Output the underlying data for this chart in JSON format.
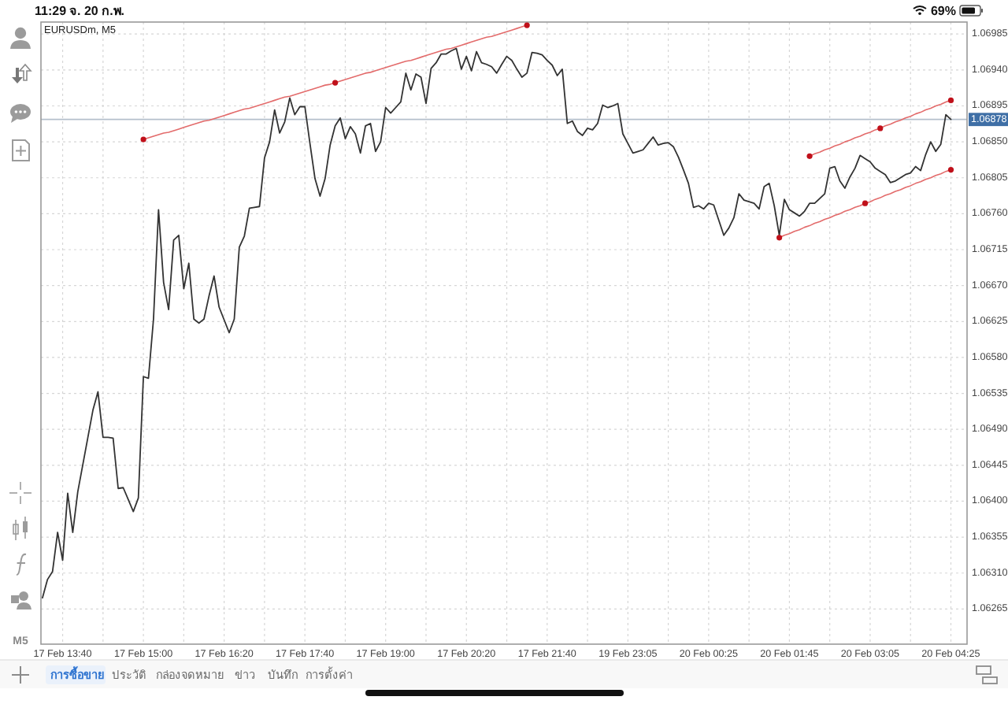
{
  "chart_data": {
    "type": "line",
    "title": "EURUSDm, M5",
    "categories": [
      null,
      null,
      null,
      null,
      "17 Feb 13:40",
      null,
      null,
      null,
      null,
      null,
      null,
      null,
      null,
      null,
      null,
      null,
      null,
      null,
      null,
      null,
      "17 Feb 15:00",
      null,
      null,
      null,
      null,
      null,
      null,
      null,
      null,
      null,
      null,
      null,
      null,
      null,
      null,
      null,
      "17 Feb 16:20",
      null,
      null,
      null,
      null,
      null,
      null,
      null,
      null,
      null,
      null,
      null,
      null,
      null,
      null,
      null,
      "17 Feb 17:40",
      null,
      null,
      null,
      null,
      null,
      null,
      null,
      null,
      null,
      null,
      null,
      null,
      null,
      null,
      null,
      "17 Feb 19:00",
      null,
      null,
      null,
      null,
      null,
      null,
      null,
      null,
      null,
      null,
      null,
      null,
      null,
      null,
      null,
      "17 Feb 20:20",
      null,
      null,
      null,
      null,
      null,
      null,
      null,
      null,
      null,
      null,
      null,
      null,
      null,
      null,
      null,
      "17 Feb 21:40",
      null,
      null,
      null,
      null,
      null,
      null,
      null,
      null,
      null,
      null,
      null,
      null,
      null,
      null,
      null,
      "19 Feb 23:05",
      null,
      null,
      null,
      null,
      null,
      null,
      null,
      null,
      null,
      null,
      null,
      null,
      null,
      null,
      null,
      "20 Feb 00:25",
      null,
      null,
      null,
      null,
      null,
      null,
      null,
      null,
      null,
      null,
      null,
      null,
      null,
      null,
      null,
      "20 Feb 01:45",
      null,
      null,
      null,
      null,
      null,
      null,
      null,
      null,
      null,
      null,
      null,
      null,
      null,
      null,
      null,
      "20 Feb 03:05",
      null,
      null,
      null,
      null,
      null,
      null,
      null,
      null,
      null,
      null,
      null,
      null,
      null,
      null,
      null,
      "20 Feb 04:25"
    ],
    "series": [
      {
        "color": "#333333",
        "values": [
          1.06279,
          1.06302,
          1.06312,
          1.06361,
          1.06326,
          1.0641,
          1.06361,
          1.06412,
          1.06446,
          1.0648,
          1.06514,
          1.06537,
          1.0648,
          1.0648,
          1.06479,
          1.06416,
          1.06417,
          1.06402,
          1.06387,
          1.06404,
          1.06556,
          1.06554,
          1.06628,
          1.06765,
          1.06674,
          1.0664,
          1.06727,
          1.06733,
          1.06666,
          1.06698,
          1.06628,
          1.06623,
          1.06628,
          1.06657,
          1.06682,
          1.06643,
          1.06627,
          1.06611,
          1.06628,
          1.06718,
          1.06732,
          1.06767,
          1.06768,
          1.06769,
          1.0683,
          1.0685,
          1.0689,
          1.06861,
          1.06875,
          1.06905,
          1.06884,
          1.06894,
          1.06894,
          1.06848,
          1.06804,
          1.06782,
          1.06804,
          1.06846,
          1.0687,
          1.0688,
          1.06854,
          1.06869,
          1.0686,
          1.06836,
          1.0687,
          1.06873,
          1.06838,
          1.0685,
          1.06893,
          1.06886,
          1.06893,
          1.069,
          1.06936,
          1.06915,
          1.06935,
          1.06931,
          1.06898,
          1.06942,
          1.06949,
          1.0696,
          1.0696,
          1.06964,
          1.06967,
          1.06941,
          1.06957,
          1.06939,
          1.06963,
          1.06949,
          1.06947,
          1.06944,
          1.06936,
          1.06947,
          1.06957,
          1.06952,
          1.06941,
          1.06931,
          1.06936,
          1.06962,
          1.06961,
          1.06959,
          1.06952,
          1.06946,
          1.06933,
          1.06941,
          1.06873,
          1.06876,
          1.06863,
          1.06858,
          1.06867,
          1.06865,
          1.06873,
          1.06896,
          1.06893,
          1.06895,
          1.06898,
          1.0686,
          1.06848,
          1.06836,
          1.06838,
          1.0684,
          1.06848,
          1.06856,
          1.06846,
          1.06848,
          1.06849,
          1.06844,
          1.06831,
          1.06815,
          1.06798,
          1.06768,
          1.0677,
          1.06766,
          1.06773,
          1.06771,
          1.06752,
          1.06733,
          1.06742,
          1.06755,
          1.06785,
          1.06777,
          1.06775,
          1.06773,
          1.06766,
          1.06794,
          1.06798,
          1.0677,
          1.06733,
          1.06778,
          1.06765,
          1.06761,
          1.06757,
          1.06763,
          1.06773,
          1.06773,
          1.06779,
          1.06785,
          1.06817,
          1.06819,
          1.06801,
          1.06792,
          1.06806,
          1.06817,
          1.06833,
          1.06829,
          1.06825,
          1.06817,
          1.06813,
          1.06809,
          1.06799,
          1.06801,
          1.06805,
          1.06809,
          1.06811,
          1.06819,
          1.06814,
          1.06834,
          1.0685,
          1.06838,
          1.06847,
          1.06884,
          1.06878
        ]
      },
      {
        "type": "line",
        "color": "#e36b6b",
        "values": [
          null,
          null,
          null,
          null,
          null,
          null,
          null,
          null,
          null,
          null,
          null,
          null,
          null,
          null,
          null,
          null,
          null,
          null,
          null,
          null,
          1.06853,
          1.06855,
          1.06857,
          1.06859,
          1.06861,
          1.06862,
          1.06864,
          1.06866,
          1.06868,
          1.0687,
          1.06872,
          1.06874,
          1.06876,
          1.06877,
          1.06879,
          1.06881,
          1.06883,
          1.06885,
          1.06887,
          1.06889,
          1.06891,
          1.06892,
          1.06894,
          1.06896,
          1.06898,
          1.069,
          1.06902,
          1.06904,
          1.06906,
          1.06907,
          1.06909,
          1.06911,
          1.06913,
          1.06915,
          1.06917,
          1.06919,
          1.06921,
          1.06922,
          1.06924,
          1.06926,
          1.06928,
          1.0693,
          1.06932,
          1.06934,
          1.06936,
          1.06937,
          1.06939,
          1.06941,
          1.06943,
          1.06945,
          1.06947,
          1.06949,
          1.06951,
          1.06952,
          1.06954,
          1.06956,
          1.06958,
          1.0696,
          1.06962,
          1.06964,
          1.06966,
          1.06967,
          1.06969,
          1.06971,
          1.06973,
          1.06975,
          1.06977,
          1.06979,
          1.06981,
          1.06982,
          1.06984,
          1.06986,
          1.06988,
          1.0699,
          1.06992,
          1.06994,
          1.06996,
          null,
          null,
          null,
          null,
          null,
          null,
          null,
          null,
          null,
          null,
          null,
          null,
          null,
          null,
          null,
          null,
          null,
          null,
          null,
          null,
          null,
          null,
          null,
          null,
          null,
          null,
          null,
          null,
          null,
          null,
          null,
          null,
          null,
          null,
          null,
          null,
          null,
          null,
          null,
          null,
          null,
          null,
          null,
          null,
          null,
          null,
          null,
          null,
          null,
          null,
          null,
          null,
          null,
          null,
          null,
          null,
          null,
          null,
          null,
          null,
          null,
          null,
          null,
          null,
          null,
          null,
          null,
          null,
          null,
          null,
          null,
          null,
          null,
          null,
          null,
          null,
          null,
          null,
          null,
          null,
          null,
          null,
          null,
          null
        ]
      },
      {
        "type": "line",
        "color": "#e36b6b",
        "values": [
          null,
          null,
          null,
          null,
          null,
          null,
          null,
          null,
          null,
          null,
          null,
          null,
          null,
          null,
          null,
          null,
          null,
          null,
          null,
          null,
          null,
          null,
          null,
          null,
          null,
          null,
          null,
          null,
          null,
          null,
          null,
          null,
          null,
          null,
          null,
          null,
          null,
          null,
          null,
          null,
          null,
          null,
          null,
          null,
          null,
          null,
          null,
          null,
          null,
          null,
          null,
          null,
          null,
          null,
          null,
          null,
          null,
          null,
          null,
          null,
          null,
          null,
          null,
          null,
          null,
          null,
          null,
          null,
          null,
          null,
          null,
          null,
          null,
          null,
          null,
          null,
          null,
          null,
          null,
          null,
          null,
          null,
          null,
          null,
          null,
          null,
          null,
          null,
          null,
          null,
          null,
          null,
          null,
          null,
          null,
          null,
          null,
          null,
          null,
          null,
          null,
          null,
          null,
          null,
          null,
          null,
          null,
          null,
          null,
          null,
          null,
          null,
          null,
          null,
          null,
          null,
          null,
          null,
          null,
          null,
          null,
          null,
          null,
          null,
          null,
          null,
          null,
          null,
          null,
          null,
          null,
          null,
          null,
          null,
          null,
          null,
          null,
          null,
          null,
          null,
          null,
          null,
          null,
          null,
          null,
          null,
          null,
          null,
          null,
          null,
          null,
          null,
          1.06832,
          1.06835,
          1.06837,
          1.0684,
          1.06842,
          1.06845,
          1.06847,
          1.0685,
          1.06852,
          1.06855,
          1.06857,
          1.0686,
          1.06862,
          1.06865,
          1.06867,
          1.0687,
          1.06872,
          1.06875,
          1.06877,
          1.0688,
          1.06882,
          1.06885,
          1.06887,
          1.0689,
          1.06892,
          1.06895,
          1.06897,
          1.069,
          1.06902
        ]
      },
      {
        "type": "line",
        "color": "#e36b6b",
        "values": [
          null,
          null,
          null,
          null,
          null,
          null,
          null,
          null,
          null,
          null,
          null,
          null,
          null,
          null,
          null,
          null,
          null,
          null,
          null,
          null,
          null,
          null,
          null,
          null,
          null,
          null,
          null,
          null,
          null,
          null,
          null,
          null,
          null,
          null,
          null,
          null,
          null,
          null,
          null,
          null,
          null,
          null,
          null,
          null,
          null,
          null,
          null,
          null,
          null,
          null,
          null,
          null,
          null,
          null,
          null,
          null,
          null,
          null,
          null,
          null,
          null,
          null,
          null,
          null,
          null,
          null,
          null,
          null,
          null,
          null,
          null,
          null,
          null,
          null,
          null,
          null,
          null,
          null,
          null,
          null,
          null,
          null,
          null,
          null,
          null,
          null,
          null,
          null,
          null,
          null,
          null,
          null,
          null,
          null,
          null,
          null,
          null,
          null,
          null,
          null,
          null,
          null,
          null,
          null,
          null,
          null,
          null,
          null,
          null,
          null,
          null,
          null,
          null,
          null,
          null,
          null,
          null,
          null,
          null,
          null,
          null,
          null,
          null,
          null,
          null,
          null,
          null,
          null,
          null,
          null,
          null,
          null,
          null,
          null,
          null,
          null,
          null,
          null,
          null,
          null,
          null,
          null,
          null,
          null,
          null,
          null,
          1.0673,
          1.06733,
          1.06735,
          1.06738,
          1.0674,
          1.06743,
          1.06745,
          1.06748,
          1.0675,
          1.06753,
          1.06755,
          1.06758,
          1.0676,
          1.06763,
          1.06765,
          1.06768,
          1.0677,
          1.06773,
          1.06775,
          1.06778,
          1.0678,
          1.06783,
          1.06785,
          1.06788,
          1.0679,
          1.06793,
          1.06795,
          1.06798,
          1.068,
          1.06803,
          1.06805,
          1.06808,
          1.0681,
          1.06813,
          1.06815
        ]
      },
      {
        "type": "scatter",
        "color": "#c0101a",
        "marker": "circle",
        "values": [
          null,
          null,
          null,
          null,
          null,
          null,
          null,
          null,
          null,
          null,
          null,
          null,
          null,
          null,
          null,
          null,
          null,
          null,
          null,
          null,
          1.06853,
          null,
          null,
          null,
          null,
          null,
          null,
          null,
          null,
          null,
          null,
          null,
          null,
          null,
          null,
          null,
          null,
          null,
          null,
          null,
          null,
          null,
          null,
          null,
          null,
          null,
          null,
          null,
          null,
          null,
          null,
          null,
          null,
          null,
          null,
          null,
          null,
          null,
          1.06924,
          null,
          null,
          null,
          null,
          null,
          null,
          null,
          null,
          null,
          null,
          null,
          null,
          null,
          null,
          null,
          null,
          null,
          null,
          null,
          null,
          null,
          null,
          null,
          null,
          null,
          null,
          null,
          null,
          null,
          null,
          null,
          null,
          null,
          null,
          null,
          null,
          null,
          1.06996,
          null,
          null,
          null,
          null,
          null,
          null,
          null,
          null,
          null,
          null,
          null,
          null,
          null,
          null,
          null,
          null,
          null,
          null,
          null,
          null,
          null,
          null,
          null,
          null,
          null,
          null,
          null,
          null,
          null,
          null,
          null,
          null,
          null,
          null,
          null,
          null,
          null,
          null,
          null,
          null,
          null,
          null,
          null,
          null,
          null,
          null,
          null,
          null,
          null,
          null,
          null,
          null,
          null,
          null,
          null,
          null,
          null,
          null,
          null,
          null,
          null,
          null,
          null,
          null,
          null,
          null,
          null,
          null,
          null,
          null,
          null,
          null,
          null,
          null,
          null,
          null,
          null,
          null,
          null,
          null,
          null,
          null,
          null,
          null
        ]
      },
      {
        "type": "scatter",
        "color": "#c0101a",
        "marker": "circle",
        "values": [
          null,
          null,
          null,
          null,
          null,
          null,
          null,
          null,
          null,
          null,
          null,
          null,
          null,
          null,
          null,
          null,
          null,
          null,
          null,
          null,
          null,
          null,
          null,
          null,
          null,
          null,
          null,
          null,
          null,
          null,
          null,
          null,
          null,
          null,
          null,
          null,
          null,
          null,
          null,
          null,
          null,
          null,
          null,
          null,
          null,
          null,
          null,
          null,
          null,
          null,
          null,
          null,
          null,
          null,
          null,
          null,
          null,
          null,
          null,
          null,
          null,
          null,
          null,
          null,
          null,
          null,
          null,
          null,
          null,
          null,
          null,
          null,
          null,
          null,
          null,
          null,
          null,
          null,
          null,
          null,
          null,
          null,
          null,
          null,
          null,
          null,
          null,
          null,
          null,
          null,
          null,
          null,
          null,
          null,
          null,
          null,
          null,
          null,
          null,
          null,
          null,
          null,
          null,
          null,
          null,
          null,
          null,
          null,
          null,
          null,
          null,
          null,
          null,
          null,
          null,
          null,
          null,
          null,
          null,
          null,
          null,
          null,
          null,
          null,
          null,
          null,
          null,
          null,
          null,
          null,
          null,
          null,
          null,
          null,
          null,
          null,
          null,
          null,
          null,
          null,
          null,
          null,
          null,
          null,
          null,
          null,
          null,
          null,
          null,
          null,
          null,
          null,
          1.06832,
          null,
          null,
          null,
          null,
          null,
          null,
          null,
          null,
          null,
          null,
          null,
          null,
          null,
          1.06867,
          null,
          null,
          null,
          null,
          null,
          null,
          null,
          null,
          null,
          null,
          null,
          null,
          null,
          1.06902
        ]
      },
      {
        "type": "scatter",
        "color": "#c0101a",
        "marker": "circle",
        "values": [
          null,
          null,
          null,
          null,
          null,
          null,
          null,
          null,
          null,
          null,
          null,
          null,
          null,
          null,
          null,
          null,
          null,
          null,
          null,
          null,
          null,
          null,
          null,
          null,
          null,
          null,
          null,
          null,
          null,
          null,
          null,
          null,
          null,
          null,
          null,
          null,
          null,
          null,
          null,
          null,
          null,
          null,
          null,
          null,
          null,
          null,
          null,
          null,
          null,
          null,
          null,
          null,
          null,
          null,
          null,
          null,
          null,
          null,
          null,
          null,
          null,
          null,
          null,
          null,
          null,
          null,
          null,
          null,
          null,
          null,
          null,
          null,
          null,
          null,
          null,
          null,
          null,
          null,
          null,
          null,
          null,
          null,
          null,
          null,
          null,
          null,
          null,
          null,
          null,
          null,
          null,
          null,
          null,
          null,
          null,
          null,
          null,
          null,
          null,
          null,
          null,
          null,
          null,
          null,
          null,
          null,
          null,
          null,
          null,
          null,
          null,
          null,
          null,
          null,
          null,
          null,
          null,
          null,
          null,
          null,
          null,
          null,
          null,
          null,
          null,
          null,
          null,
          null,
          null,
          null,
          null,
          null,
          null,
          null,
          null,
          null,
          null,
          null,
          null,
          null,
          null,
          null,
          null,
          null,
          null,
          null,
          1.0673,
          null,
          null,
          null,
          null,
          null,
          null,
          null,
          null,
          null,
          null,
          null,
          null,
          null,
          null,
          null,
          null,
          1.06773,
          null,
          null,
          null,
          null,
          null,
          null,
          null,
          null,
          null,
          null,
          null,
          null,
          null,
          null,
          null,
          null,
          1.06815
        ]
      }
    ],
    "ylim": [
      1.06221,
      1.07
    ],
    "yticks": [
      1.06265,
      {
        "value": 1.0631,
        "label": "1.06310"
      },
      1.06355,
      {
        "value": 1.064,
        "label": "1.06400"
      },
      1.06445,
      {
        "value": 1.0649,
        "label": "1.06490"
      },
      1.06535,
      {
        "value": 1.0658,
        "label": "1.06580"
      },
      1.06625,
      {
        "value": 1.0667,
        "label": "1.06670"
      },
      1.06715,
      {
        "value": 1.0676,
        "label": "1.06760"
      },
      1.06805,
      {
        "value": 1.0685,
        "label": "1.06850"
      },
      1.06895,
      {
        "value": 1.0694,
        "label": "1.06940"
      },
      1.06985
    ],
    "grid": true,
    "ref_lines": [
      {
        "axis": "y",
        "value": 1.06878,
        "label": "1.06878",
        "color": "#b4bfcc"
      }
    ],
    "annotations": [
      "11:29",
      "จ. 20 ก.พ.",
      "69%",
      "M5",
      "การซื้อขาย",
      "ประวัติ",
      "กล่องจดหมาย",
      "ข่าว",
      "บันทึก",
      "การตั้งค่า"
    ]
  }
}
